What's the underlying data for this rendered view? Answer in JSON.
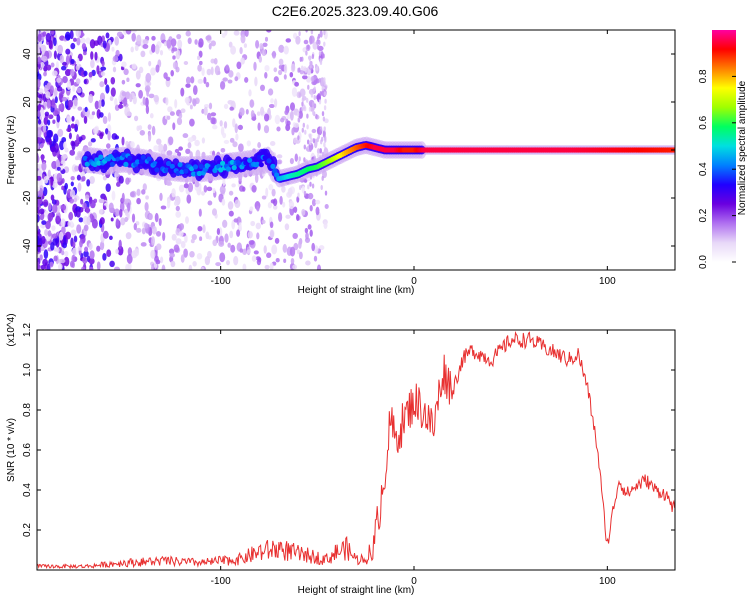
{
  "title": "C2E6.2025.323.09.40.G06",
  "chart_data": [
    {
      "type": "heatmap",
      "title": "C2E6.2025.323.09.40.G06",
      "xlabel": "Height of straight line (km)",
      "ylabel": "Frequency (Hz)",
      "xlim": [
        -195,
        135
      ],
      "ylim": [
        -50,
        50
      ],
      "xticks": [
        -100,
        0,
        100
      ],
      "yticks": [
        -40,
        -20,
        0,
        20,
        40
      ],
      "colorbar": {
        "label": "Normalized spectral amplitude",
        "range": [
          0,
          1
        ],
        "ticks": [
          "0.0",
          "0.2",
          "0.4",
          "0.6",
          "0.8"
        ],
        "colors": [
          "#ffffff",
          "#e8d8f8",
          "#b070f0",
          "#6a00e0",
          "#2000ff",
          "#0080ff",
          "#00e0e0",
          "#00ff60",
          "#a0ff00",
          "#ffff00",
          "#ff8000",
          "#ff0000",
          "#ff00a0"
        ]
      },
      "ridge": {
        "x": [
          -170,
          -160,
          -150,
          -140,
          -130,
          -120,
          -110,
          -100,
          -90,
          -80,
          -75,
          -70,
          -65,
          -60,
          -55,
          -50,
          -45,
          -40,
          -35,
          -30,
          -25,
          -20,
          -15,
          -10,
          -5,
          0,
          5,
          10,
          40,
          80,
          135
        ],
        "y": [
          -4,
          -5,
          -4,
          -5,
          -7,
          -8,
          -8,
          -7,
          -6,
          -5,
          -4,
          -12,
          -11,
          -10,
          -8,
          -7,
          -5,
          -3,
          -1,
          1,
          2,
          1,
          0,
          0,
          0,
          0,
          0,
          0,
          0,
          0,
          0
        ],
        "amplitude": [
          0.3,
          0.35,
          0.3,
          0.3,
          0.3,
          0.3,
          0.32,
          0.33,
          0.32,
          0.3,
          0.3,
          0.45,
          0.5,
          0.55,
          0.58,
          0.6,
          0.65,
          0.72,
          0.8,
          0.85,
          0.9,
          0.95,
          0.95,
          0.95,
          0.9,
          0.9,
          0.95,
          0.95,
          0.95,
          0.95,
          0.9
        ]
      }
    },
    {
      "type": "line",
      "xlabel": "Height of straight line (km)",
      "ylabel": "SNR (10 * v/v)",
      "y_multiplier": "(x10^4)",
      "xlim": [
        -195,
        135
      ],
      "ylim": [
        0,
        1.2
      ],
      "xticks": [
        -100,
        0,
        100
      ],
      "yticks": [
        0.2,
        0.4,
        0.6,
        0.8,
        1.0,
        1.2
      ],
      "line_color": "#e83030",
      "series": [
        {
          "x": [
            -195,
            -170,
            -150,
            -130,
            -110,
            -100,
            -90,
            -80,
            -70,
            -60,
            -50,
            -45,
            -40,
            -35,
            -30,
            -25,
            -20,
            -18,
            -15,
            -12,
            -10,
            -5,
            0,
            5,
            10,
            15,
            20,
            25,
            30,
            40,
            50,
            60,
            70,
            80,
            85,
            90,
            95,
            98,
            100,
            103,
            106,
            110,
            115,
            120,
            125,
            130,
            135
          ],
          "y": [
            0.02,
            0.02,
            0.04,
            0.05,
            0.04,
            0.05,
            0.06,
            0.1,
            0.12,
            0.09,
            0.07,
            0.06,
            0.1,
            0.12,
            0.06,
            0.06,
            0.15,
            0.3,
            0.5,
            0.75,
            0.65,
            0.75,
            0.85,
            0.8,
            0.7,
            1.0,
            0.9,
            1.05,
            1.1,
            1.05,
            1.15,
            1.15,
            1.1,
            1.05,
            1.08,
            0.9,
            0.6,
            0.3,
            0.12,
            0.3,
            0.45,
            0.38,
            0.42,
            0.45,
            0.4,
            0.38,
            0.3
          ]
        }
      ]
    }
  ]
}
